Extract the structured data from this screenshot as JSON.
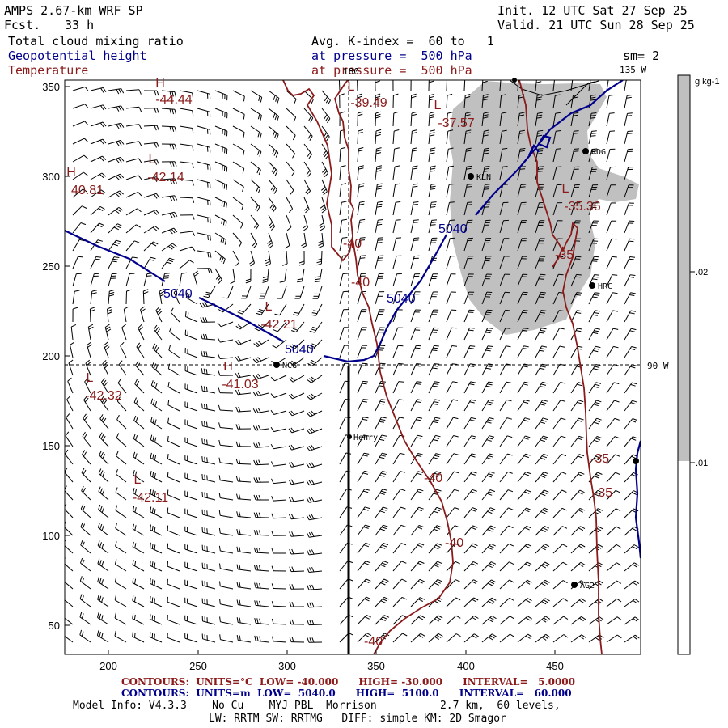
{
  "header": {
    "model": "AMPS 2.67-km WRF SP",
    "forecast_label": "Fcst.",
    "forecast_hours": "33 h",
    "init": "Init. 12 UTC Sat 27 Sep 25",
    "valid": "Valid. 21 UTC Sun 28 Sep 25",
    "field1": "Total cloud mixing ratio",
    "field2": "Geopotential height",
    "field3": "Temperature",
    "avg": "Avg. K-index =  60 to   1",
    "pressure1": "at pressure =  500 hPa",
    "pressure2": "at pressure =  500 hPa",
    "smoothing": "sm= 2"
  },
  "map": {
    "meridian_180": "180",
    "meridian_135": "135 W",
    "meridian_90": "90 W",
    "x_ticks": [
      "200",
      "250",
      "300",
      "350",
      "400",
      "450"
    ],
    "y_ticks": [
      "350",
      "300",
      "250",
      "200",
      "150",
      "100",
      "50"
    ],
    "stations": [
      "KLN",
      "RDG",
      "HRC",
      "NCG",
      "Henry",
      "AG2"
    ],
    "height_labels": [
      "5040",
      "5040",
      "5040",
      "5040"
    ],
    "temp_labels": [
      "-40",
      "-40",
      "-40",
      "-40",
      "-40",
      "-35",
      "-35",
      "-35"
    ],
    "centers": [
      {
        "type": "H",
        "value": "-44.44"
      },
      {
        "type": "L",
        "value": "-39.49"
      },
      {
        "type": "L",
        "value": "-37.57"
      },
      {
        "type": "L",
        "value": "-42.14"
      },
      {
        "type": "H",
        "value": "40.81"
      },
      {
        "type": "L",
        "value": "-35.36"
      },
      {
        "type": "L",
        "value": "-42.21"
      },
      {
        "type": "H",
        "value": "-41.03"
      },
      {
        "type": "L",
        "value": "-42.32"
      },
      {
        "type": "L",
        "value": "-42.11"
      }
    ]
  },
  "colorbar": {
    "unit": "g kg-1",
    "ticks": [
      ".02",
      ".01"
    ]
  },
  "footer": {
    "temp_line": "CONTOURS:  UNITS=°C  LOW= -40.000      HIGH= -30.000      INTERVAL=   5.0000",
    "height_line": "CONTOURS:  UNITS=m  LOW=  5040.0      HIGH=  5100.0      INTERVAL=   60.000",
    "model_info": "Model Info: V4.3.3    No Cu    MYJ PBL  Morrison          2.7 km,  60 levels,",
    "physics": "LW: RRTM SW: RRTMG   DIFF: simple KM: 2D Smagor"
  },
  "colors": {
    "height": "#00008b",
    "temperature": "#8b1a1a",
    "cloud": "#c0c0c0"
  }
}
